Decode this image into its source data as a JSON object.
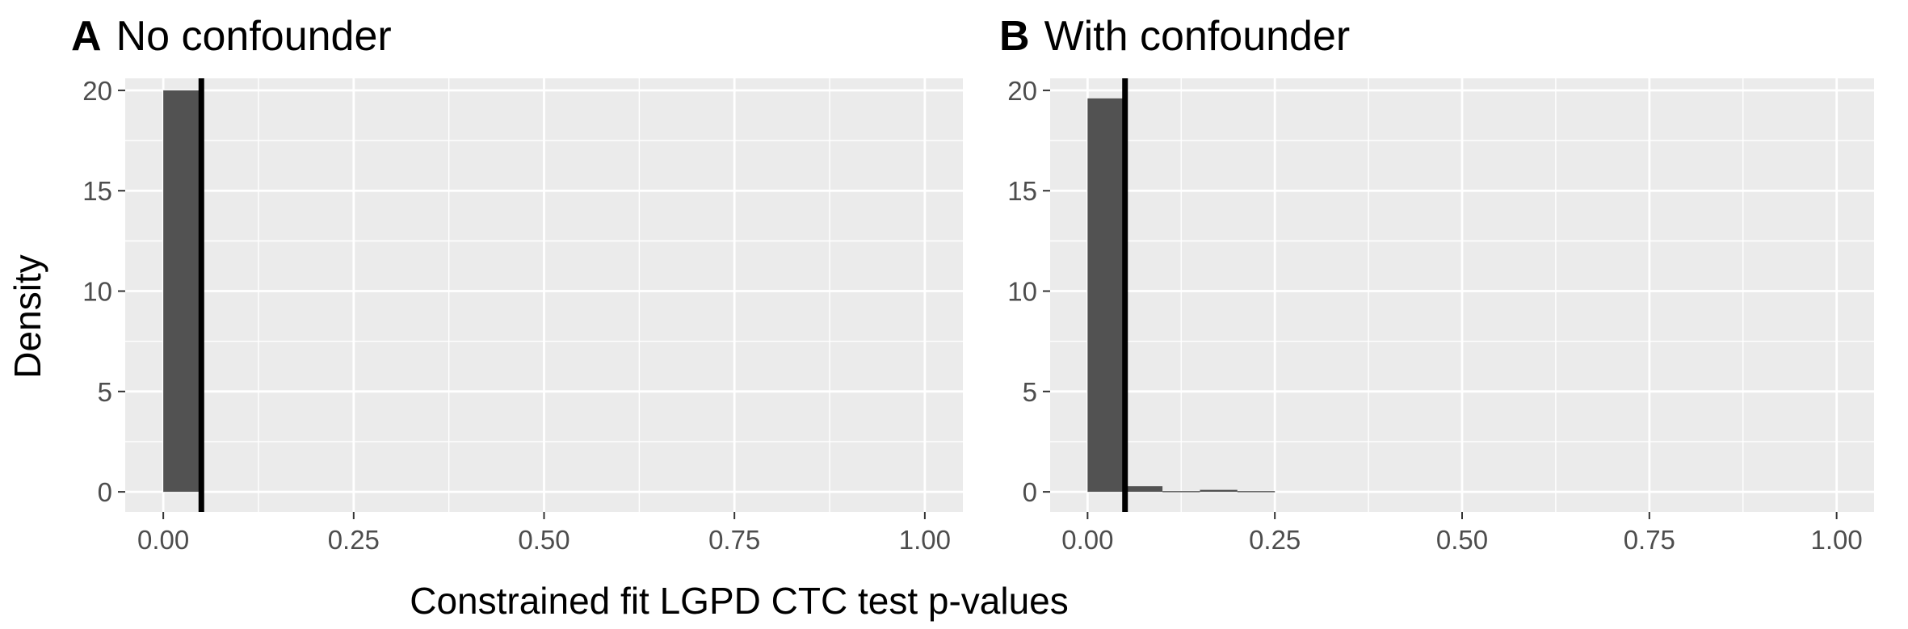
{
  "figure": {
    "shared_xlabel": "Constrained fit LGPD CTC test p-values",
    "shared_ylabel": "Density"
  },
  "colors": {
    "panel_background": "#EBEBEB",
    "grid_major": "#FFFFFF",
    "bar_fill": "#525252",
    "reference_line": "#000000",
    "tick_label": "#4D4D4D"
  },
  "chart_data": [
    {
      "type": "bar",
      "panel_tag": "A",
      "title": "No confounder",
      "xlabel": "Constrained fit LGPD CTC test p-values",
      "ylabel": "Density",
      "xlim": [
        -0.05,
        1.05
      ],
      "ylim": [
        -1,
        20.6
      ],
      "xticks": [
        0,
        0.25,
        0.5,
        0.75,
        1
      ],
      "xtick_labels": [
        "0.00",
        "0.25",
        "0.50",
        "0.75",
        "1.00"
      ],
      "yticks": [
        0,
        5,
        10,
        15,
        20
      ],
      "ytick_labels": [
        "0",
        "5",
        "10",
        "15",
        "20"
      ],
      "grid": true,
      "reference_line_x": 0.05,
      "bins": [
        {
          "x0": 0.0,
          "x1": 0.05,
          "density": 20.0
        }
      ]
    },
    {
      "type": "bar",
      "panel_tag": "B",
      "title": "With confounder",
      "xlabel": "Constrained fit LGPD CTC test p-values",
      "ylabel": "Density",
      "xlim": [
        -0.05,
        1.05
      ],
      "ylim": [
        -1,
        20.6
      ],
      "xticks": [
        0,
        0.25,
        0.5,
        0.75,
        1
      ],
      "xtick_labels": [
        "0.00",
        "0.25",
        "0.50",
        "0.75",
        "1.00"
      ],
      "yticks": [
        0,
        5,
        10,
        15,
        20
      ],
      "ytick_labels": [
        "0",
        "5",
        "10",
        "15",
        "20"
      ],
      "grid": true,
      "reference_line_x": 0.05,
      "bins": [
        {
          "x0": 0.0,
          "x1": 0.05,
          "density": 19.6
        },
        {
          "x0": 0.05,
          "x1": 0.1,
          "density": 0.28
        },
        {
          "x0": 0.1,
          "x1": 0.15,
          "density": 0.04
        },
        {
          "x0": 0.15,
          "x1": 0.2,
          "density": 0.1
        },
        {
          "x0": 0.2,
          "x1": 0.25,
          "density": 0.04
        }
      ]
    }
  ]
}
